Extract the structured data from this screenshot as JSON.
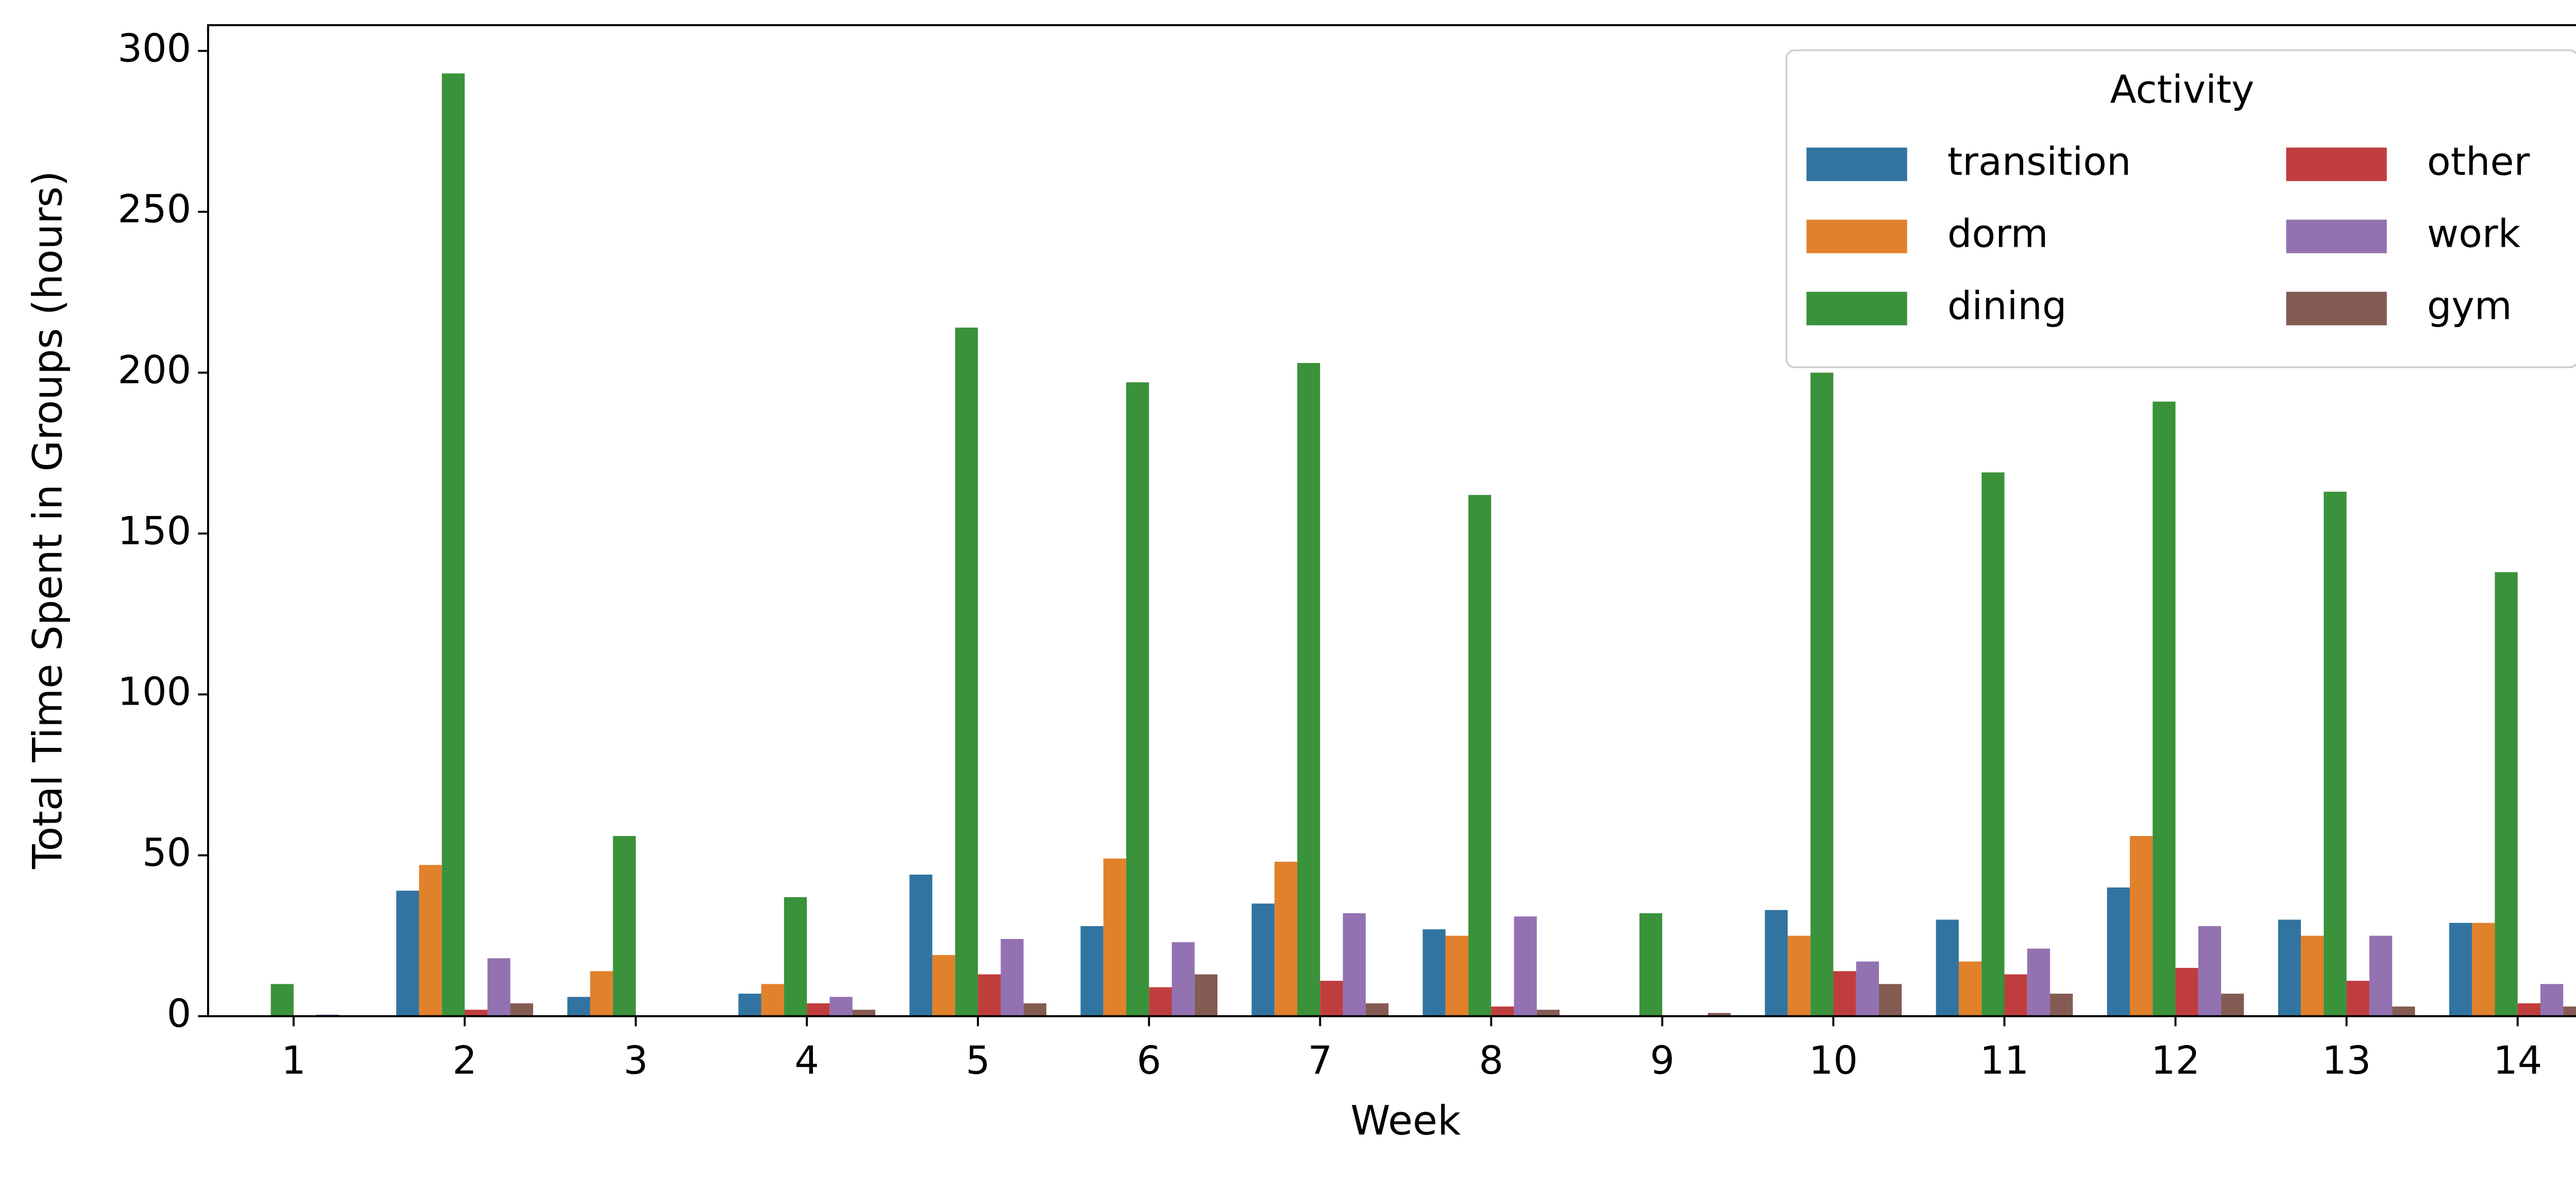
{
  "chart_data": {
    "type": "bar",
    "x_label": "Week",
    "y_label": "Total Time Spent in Groups (hours)",
    "categories": [
      "1",
      "2",
      "3",
      "4",
      "5",
      "6",
      "7",
      "8",
      "9",
      "10",
      "11",
      "12",
      "13",
      "14"
    ],
    "series": [
      {
        "name": "transition",
        "color": "#3274a1",
        "values": [
          0,
          39,
          6,
          7,
          44,
          28,
          35,
          27,
          0,
          33,
          30,
          40,
          30,
          29
        ]
      },
      {
        "name": "dorm",
        "color": "#e1812c",
        "values": [
          0,
          47,
          14,
          10,
          19,
          49,
          48,
          25,
          0,
          25,
          17,
          56,
          25,
          29
        ]
      },
      {
        "name": "dining",
        "color": "#3a923a",
        "values": [
          10,
          293,
          56,
          37,
          214,
          197,
          203,
          162,
          32,
          200,
          169,
          191,
          163,
          138
        ]
      },
      {
        "name": "other",
        "color": "#c03d3e",
        "values": [
          0,
          2,
          0,
          4,
          13,
          9,
          11,
          3,
          0,
          14,
          13,
          15,
          11,
          4
        ]
      },
      {
        "name": "work",
        "color": "#9372b2",
        "values": [
          0.5,
          18,
          0,
          6,
          24,
          23,
          32,
          31,
          0,
          17,
          21,
          28,
          25,
          10
        ]
      },
      {
        "name": "gym",
        "color": "#845b53",
        "values": [
          0,
          4,
          0,
          2,
          4,
          13,
          4,
          2,
          1,
          10,
          7,
          7,
          3,
          3
        ]
      }
    ],
    "ylim": [
      0,
      308
    ],
    "yticks": [
      0,
      50,
      100,
      150,
      200,
      250,
      300
    ],
    "grid": false,
    "legend": {
      "title": "Activity",
      "position": "upper right",
      "columns": 2
    }
  }
}
